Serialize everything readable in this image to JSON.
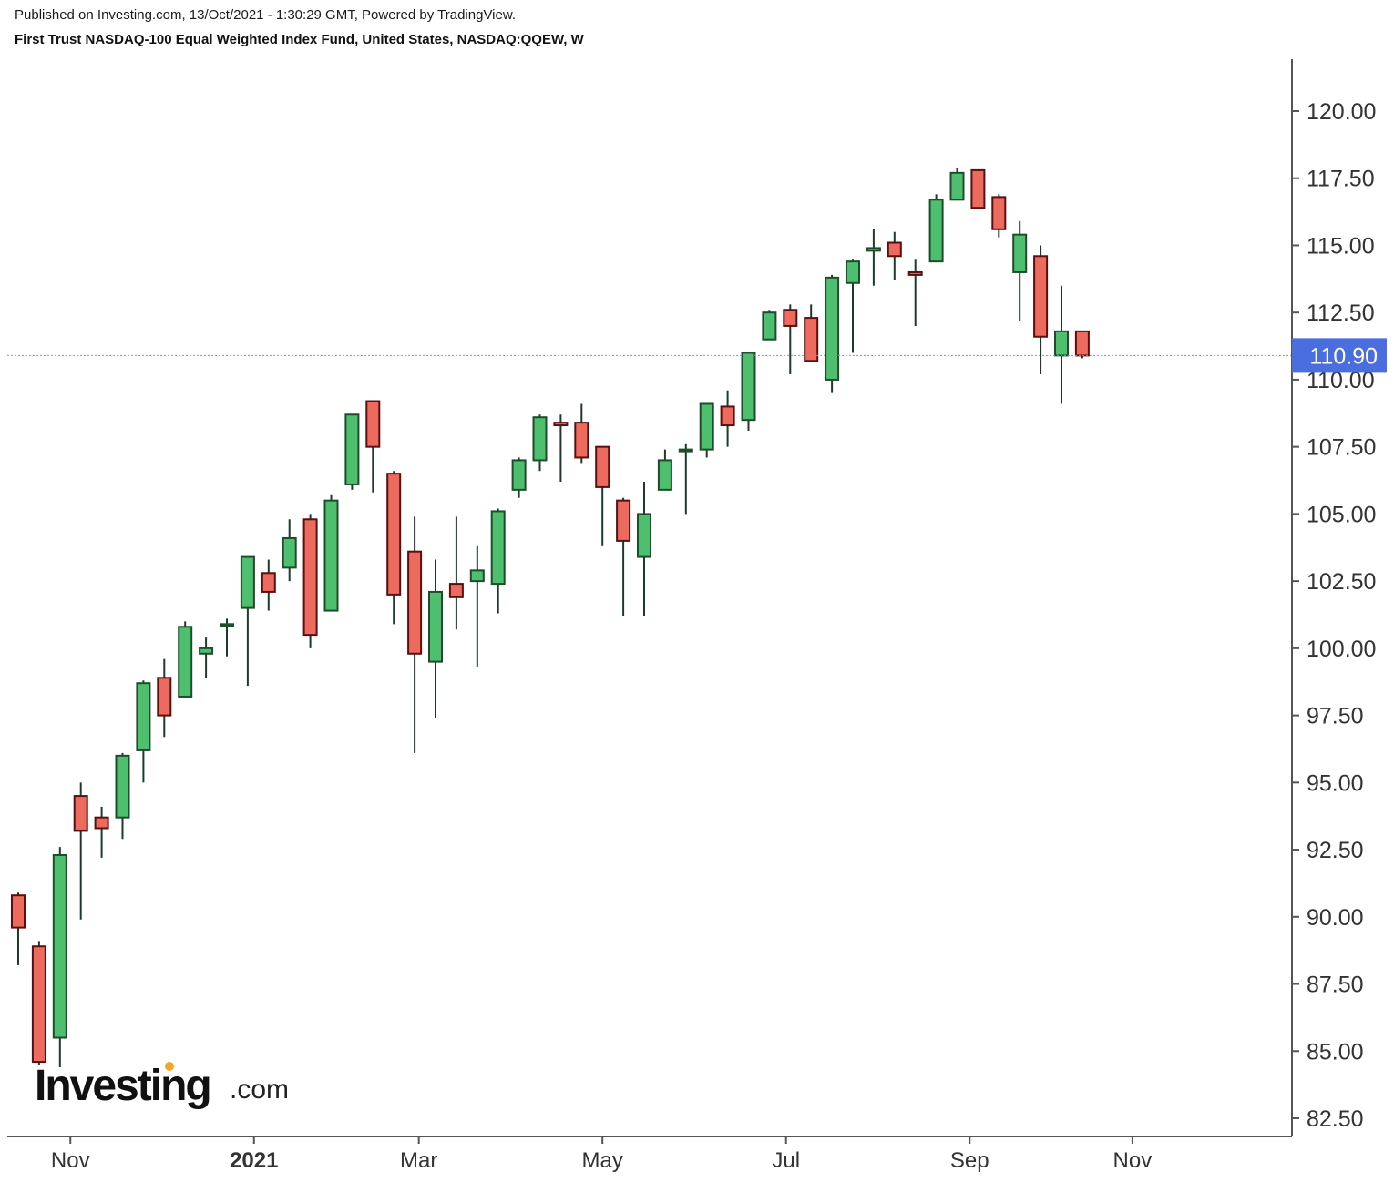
{
  "header": {
    "published": "Published on Investing.com, 13/Oct/2021 - 1:30:29 GMT, Powered by TradingView.",
    "title": "First Trust NASDAQ-100 Equal Weighted Index Fund, United States, NASDAQ:QQEW, W"
  },
  "logo": {
    "main": "Investing",
    "suffix": ".com"
  },
  "colors": {
    "up": "#4dbf6e",
    "down": "#ec6a5e",
    "wick": "#1e3a2a",
    "last_price_bg": "#4a6ee0",
    "last_price_line": "#7b93e6",
    "axis": "#555555"
  },
  "chart_data": {
    "type": "candlestick",
    "interval": "W",
    "ylim": [
      81.5,
      122
    ],
    "y_ticks": [
      "82.50",
      "85.00",
      "87.50",
      "90.00",
      "92.50",
      "95.00",
      "97.50",
      "100.00",
      "102.50",
      "105.00",
      "107.50",
      "110.00",
      "112.50",
      "115.00",
      "117.50",
      "120.00"
    ],
    "x_ticks": [
      {
        "label": "Nov",
        "week": 2.5,
        "bold": false
      },
      {
        "label": "2021",
        "week": 11.3,
        "bold": true
      },
      {
        "label": "Mar",
        "week": 19.2,
        "bold": false
      },
      {
        "label": "May",
        "week": 28.0,
        "bold": false
      },
      {
        "label": "Jul",
        "week": 36.8,
        "bold": false
      },
      {
        "label": "Sep",
        "week": 45.6,
        "bold": false
      },
      {
        "label": "Nov",
        "week": 53.4,
        "bold": false
      }
    ],
    "last_price": "110.90",
    "candles": [
      {
        "o": 90.8,
        "h": 90.9,
        "l": 88.2,
        "c": 89.6
      },
      {
        "o": 88.9,
        "h": 89.1,
        "l": 84.5,
        "c": 84.6
      },
      {
        "o": 85.5,
        "h": 92.6,
        "l": 84.4,
        "c": 92.3
      },
      {
        "o": 94.5,
        "h": 95.0,
        "l": 89.9,
        "c": 93.2
      },
      {
        "o": 93.7,
        "h": 94.1,
        "l": 92.2,
        "c": 93.3
      },
      {
        "o": 93.7,
        "h": 96.1,
        "l": 92.9,
        "c": 96.0
      },
      {
        "o": 96.2,
        "h": 98.8,
        "l": 95.0,
        "c": 98.7
      },
      {
        "o": 98.9,
        "h": 99.6,
        "l": 96.7,
        "c": 97.5
      },
      {
        "o": 98.2,
        "h": 101.0,
        "l": 98.2,
        "c": 100.8
      },
      {
        "o": 99.8,
        "h": 100.4,
        "l": 98.9,
        "c": 100.0
      },
      {
        "o": 100.9,
        "h": 101.1,
        "l": 99.7,
        "c": 100.9
      },
      {
        "o": 101.5,
        "h": 103.4,
        "l": 98.6,
        "c": 103.4
      },
      {
        "o": 102.8,
        "h": 103.3,
        "l": 101.4,
        "c": 102.1
      },
      {
        "o": 103.0,
        "h": 104.8,
        "l": 102.5,
        "c": 104.1
      },
      {
        "o": 104.8,
        "h": 105.0,
        "l": 100.0,
        "c": 100.5
      },
      {
        "o": 101.4,
        "h": 105.7,
        "l": 101.4,
        "c": 105.5
      },
      {
        "o": 106.1,
        "h": 108.7,
        "l": 105.9,
        "c": 108.7
      },
      {
        "o": 109.2,
        "h": 109.2,
        "l": 105.8,
        "c": 107.5
      },
      {
        "o": 106.5,
        "h": 106.6,
        "l": 100.9,
        "c": 102.0
      },
      {
        "o": 103.6,
        "h": 104.9,
        "l": 96.1,
        "c": 99.8
      },
      {
        "o": 99.5,
        "h": 103.3,
        "l": 97.4,
        "c": 102.1
      },
      {
        "o": 102.4,
        "h": 104.9,
        "l": 100.7,
        "c": 101.9
      },
      {
        "o": 102.5,
        "h": 103.8,
        "l": 99.3,
        "c": 102.9
      },
      {
        "o": 102.4,
        "h": 105.2,
        "l": 101.3,
        "c": 105.1
      },
      {
        "o": 105.9,
        "h": 107.1,
        "l": 105.6,
        "c": 107.0
      },
      {
        "o": 107.0,
        "h": 108.7,
        "l": 106.6,
        "c": 108.6
      },
      {
        "o": 108.4,
        "h": 108.7,
        "l": 106.2,
        "c": 108.3
      },
      {
        "o": 108.4,
        "h": 109.1,
        "l": 106.9,
        "c": 107.1
      },
      {
        "o": 107.5,
        "h": 107.5,
        "l": 103.8,
        "c": 106.0
      },
      {
        "o": 105.5,
        "h": 105.6,
        "l": 101.2,
        "c": 104.0
      },
      {
        "o": 103.4,
        "h": 106.2,
        "l": 101.2,
        "c": 105.0
      },
      {
        "o": 105.9,
        "h": 107.4,
        "l": 105.9,
        "c": 107.0
      },
      {
        "o": 107.4,
        "h": 107.6,
        "l": 105.0,
        "c": 107.4
      },
      {
        "o": 107.4,
        "h": 109.1,
        "l": 107.1,
        "c": 109.1
      },
      {
        "o": 109.0,
        "h": 109.6,
        "l": 107.5,
        "c": 108.3
      },
      {
        "o": 108.5,
        "h": 111.0,
        "l": 108.1,
        "c": 111.0
      },
      {
        "o": 111.5,
        "h": 112.6,
        "l": 111.5,
        "c": 112.5
      },
      {
        "o": 112.6,
        "h": 112.8,
        "l": 110.2,
        "c": 112.0
      },
      {
        "o": 112.3,
        "h": 112.8,
        "l": 110.7,
        "c": 110.7
      },
      {
        "o": 110.0,
        "h": 113.9,
        "l": 109.5,
        "c": 113.8
      },
      {
        "o": 113.6,
        "h": 114.5,
        "l": 111.0,
        "c": 114.4
      },
      {
        "o": 114.8,
        "h": 115.6,
        "l": 113.5,
        "c": 114.9
      },
      {
        "o": 115.1,
        "h": 115.5,
        "l": 113.7,
        "c": 114.6
      },
      {
        "o": 114.0,
        "h": 114.5,
        "l": 112.0,
        "c": 113.9
      },
      {
        "o": 114.4,
        "h": 116.9,
        "l": 114.4,
        "c": 116.7
      },
      {
        "o": 116.7,
        "h": 117.9,
        "l": 116.7,
        "c": 117.7
      },
      {
        "o": 117.8,
        "h": 117.8,
        "l": 116.4,
        "c": 116.4
      },
      {
        "o": 116.8,
        "h": 116.9,
        "l": 115.3,
        "c": 115.6
      },
      {
        "o": 114.0,
        "h": 115.9,
        "l": 112.2,
        "c": 115.4
      },
      {
        "o": 114.6,
        "h": 115.0,
        "l": 110.2,
        "c": 111.6
      },
      {
        "o": 110.9,
        "h": 113.5,
        "l": 109.1,
        "c": 111.8
      },
      {
        "o": 111.8,
        "h": 111.8,
        "l": 110.8,
        "c": 110.9
      }
    ]
  }
}
